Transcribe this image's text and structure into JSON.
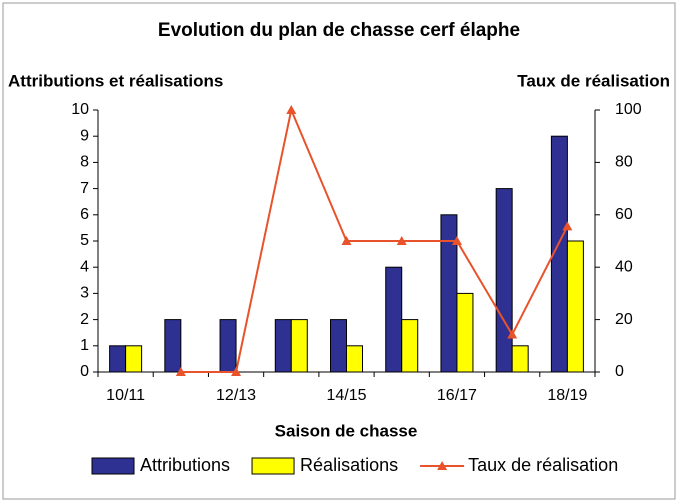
{
  "chart_data": {
    "type": "bar",
    "title": "Evolution du plan de chasse cerf élaphe",
    "y_label": "Attributions et réalisations",
    "y2_label": "Taux de réalisation",
    "x_label": "Saison de chasse",
    "categories": [
      "10/11",
      null,
      "12/13",
      null,
      "14/15",
      null,
      "16/17",
      null,
      "18/19"
    ],
    "series": [
      {
        "name": "Attributions",
        "color": "#2e3192",
        "values": [
          1,
          2,
          2,
          2,
          2,
          4,
          6,
          7,
          9
        ]
      },
      {
        "name": "Réalisations",
        "color": "#ffff00",
        "values": [
          1,
          0,
          0,
          2,
          1,
          2,
          3,
          1,
          5
        ]
      },
      {
        "name": "Taux de réalisation",
        "color": "#e8532b",
        "type": "line",
        "axis": "y2",
        "values": [
          null,
          0,
          0,
          100,
          50,
          50,
          50,
          14.3,
          55.6
        ]
      }
    ],
    "ylim": [
      0,
      10
    ],
    "yticks": [
      0,
      1,
      2,
      3,
      4,
      5,
      6,
      7,
      8,
      9,
      10
    ],
    "y2lim": [
      0,
      100
    ],
    "y2ticks": [
      0,
      20,
      40,
      60,
      80,
      100
    ],
    "legend": "bottom"
  }
}
